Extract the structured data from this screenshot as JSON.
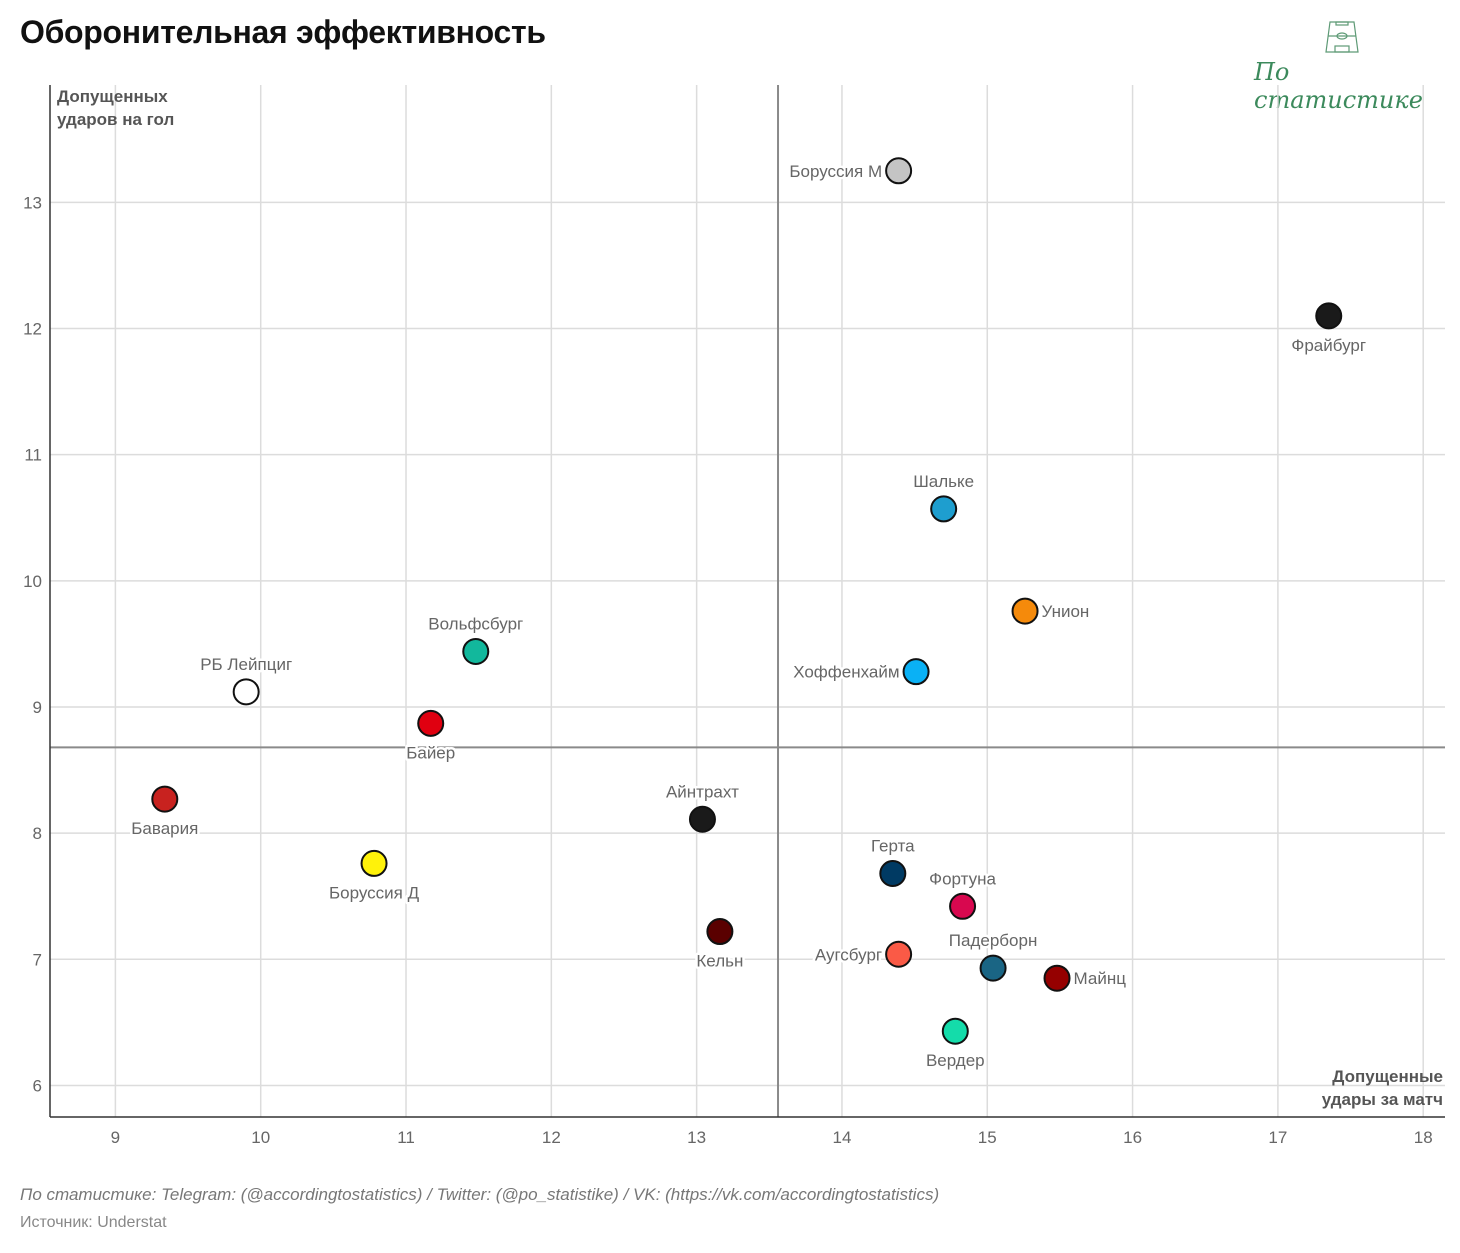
{
  "title": "Оборонительная эффективность",
  "logo": {
    "text": "По статистике",
    "icon": "football-pitch-icon",
    "color": "#3c8a5c"
  },
  "footer": {
    "credits": "По статистике: Telegram: (@accordingtostatistics) / Twitter: (@po_statistike) / VK: (https://vk.com/accordingtostatistics)",
    "source": "Источник: Understat"
  },
  "chart_data": {
    "type": "scatter",
    "title": "Оборонительная эффективность",
    "xlabel": "Допущенные удары за матч",
    "xlabel_lines": [
      "Допущенные",
      "удары за матч"
    ],
    "ylabel": "Допущенных ударов на гол",
    "ylabel_lines": [
      "Допущенных",
      "ударов на гол"
    ],
    "xlim": [
      8.55,
      18.15
    ],
    "ylim": [
      5.75,
      13.93
    ],
    "xticks": [
      9,
      10,
      11,
      12,
      13,
      14,
      15,
      16,
      17,
      18
    ],
    "yticks": [
      6,
      7,
      8,
      9,
      10,
      11,
      12,
      13
    ],
    "grid": true,
    "reference_lines": {
      "x_mean": 13.56,
      "y_mean": 8.68
    },
    "points": [
      {
        "team": "Боруссия М",
        "x": 14.39,
        "y": 13.25,
        "color": "#c4c4c4",
        "label_pos": "left"
      },
      {
        "team": "Фрайбург",
        "x": 17.35,
        "y": 12.1,
        "color": "#1a1a1a",
        "label_pos": "below"
      },
      {
        "team": "Шальке",
        "x": 14.7,
        "y": 10.57,
        "color": "#1e9ecf",
        "label_pos": "above"
      },
      {
        "team": "Унион",
        "x": 15.26,
        "y": 9.76,
        "color": "#f58a0b",
        "label_pos": "right"
      },
      {
        "team": "Хоффенхайм",
        "x": 14.51,
        "y": 9.28,
        "color": "#0ab1f5",
        "label_pos": "left"
      },
      {
        "team": "Вольфсбург",
        "x": 11.48,
        "y": 9.44,
        "color": "#12b89c",
        "label_pos": "above"
      },
      {
        "team": "РБ Лейпциг",
        "x": 9.9,
        "y": 9.12,
        "color": "#ffffff",
        "label_pos": "above"
      },
      {
        "team": "Байер",
        "x": 11.17,
        "y": 8.87,
        "color": "#e00010",
        "label_pos": "below"
      },
      {
        "team": "Бавария",
        "x": 9.34,
        "y": 8.27,
        "color": "#c8221f",
        "label_pos": "below"
      },
      {
        "team": "Боруссия Д",
        "x": 10.78,
        "y": 7.76,
        "color": "#fff20a",
        "label_pos": "below"
      },
      {
        "team": "Айнтрахт",
        "x": 13.04,
        "y": 8.11,
        "color": "#1a1a1a",
        "label_pos": "above"
      },
      {
        "team": "Кельн",
        "x": 13.16,
        "y": 7.22,
        "color": "#5a0000",
        "label_pos": "below"
      },
      {
        "team": "Герта",
        "x": 14.35,
        "y": 7.68,
        "color": "#003a63",
        "label_pos": "above"
      },
      {
        "team": "Фортуна",
        "x": 14.83,
        "y": 7.42,
        "color": "#d8084f",
        "label_pos": "above"
      },
      {
        "team": "Аугсбург",
        "x": 14.39,
        "y": 7.04,
        "color": "#fa5a46",
        "label_pos": "left"
      },
      {
        "team": "Падерборн",
        "x": 15.04,
        "y": 6.93,
        "color": "#1a6584",
        "label_pos": "above"
      },
      {
        "team": "Майнц",
        "x": 15.48,
        "y": 6.85,
        "color": "#950000",
        "label_pos": "right"
      },
      {
        "team": "Вердер",
        "x": 14.78,
        "y": 6.43,
        "color": "#14dcaa",
        "label_pos": "below"
      }
    ]
  }
}
